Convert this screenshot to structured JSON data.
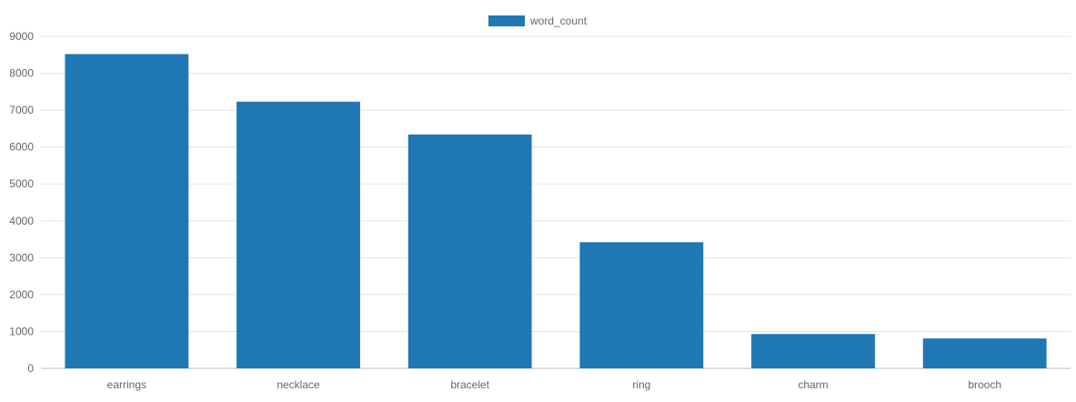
{
  "chart_data": {
    "type": "bar",
    "categories": [
      "earrings",
      "necklace",
      "bracelet",
      "ring",
      "charm",
      "brooch"
    ],
    "series": [
      {
        "name": "word_count",
        "values": [
          8520,
          7230,
          6340,
          3420,
          930,
          810
        ],
        "color": "#1f77b4"
      }
    ],
    "title": "",
    "xlabel": "",
    "ylabel": "",
    "ylim": [
      0,
      9000
    ],
    "yticks": [
      "0",
      "1000",
      "2000",
      "3000",
      "4000",
      "5000",
      "6000",
      "7000",
      "8000",
      "9000"
    ],
    "grid": true,
    "legend_position": "top-center"
  },
  "colors": {
    "grid": "#e5e5e5",
    "axis": "#bdbdbd",
    "text": "#666666",
    "background": "#ffffff"
  }
}
